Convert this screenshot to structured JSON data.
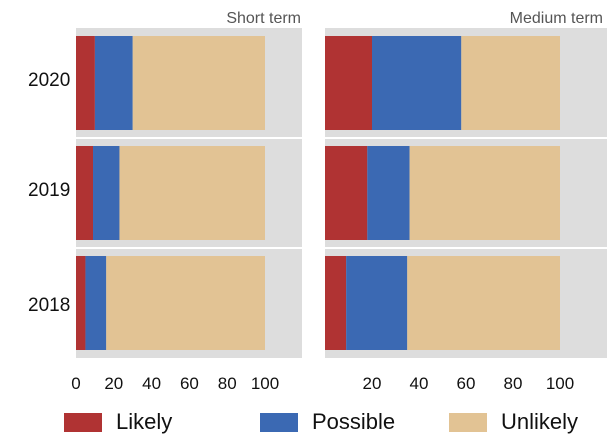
{
  "chart_data": {
    "type": "bar",
    "layout": "small-multiples",
    "orientation": "horizontal",
    "stacked": true,
    "rows": [
      "2020",
      "2019",
      "2018"
    ],
    "panels": [
      {
        "title": "Short term",
        "xlim": [
          0,
          100
        ],
        "xticks": [
          "0",
          "20",
          "40",
          "60",
          "80",
          "100"
        ],
        "series": [
          {
            "name": "Likely",
            "values": [
              10,
              9,
              5
            ]
          },
          {
            "name": "Possible",
            "values": [
              20,
              14,
              11
            ]
          },
          {
            "name": "Unlikely",
            "values": [
              70,
              77,
              84
            ]
          }
        ]
      },
      {
        "title": "Medium term",
        "xlim": [
          0,
          100
        ],
        "xticks": [
          "20",
          "40",
          "60",
          "80",
          "100"
        ],
        "series": [
          {
            "name": "Likely",
            "values": [
              20,
              18,
              9
            ]
          },
          {
            "name": "Possible",
            "values": [
              38,
              18,
              26
            ]
          },
          {
            "name": "Unlikely",
            "values": [
              42,
              64,
              65
            ]
          }
        ]
      }
    ],
    "legend": [
      {
        "label": "Likely",
        "color": "#b03333"
      },
      {
        "label": "Possible",
        "color": "#3b69b3"
      },
      {
        "label": "Unlikely",
        "color": "#e2c394"
      }
    ],
    "grid": true,
    "legend_position": "bottom"
  },
  "colors": {
    "panel_background": "#dddddd",
    "separator": "#ffffff",
    "text": "#111111",
    "title_text": "#555555"
  }
}
